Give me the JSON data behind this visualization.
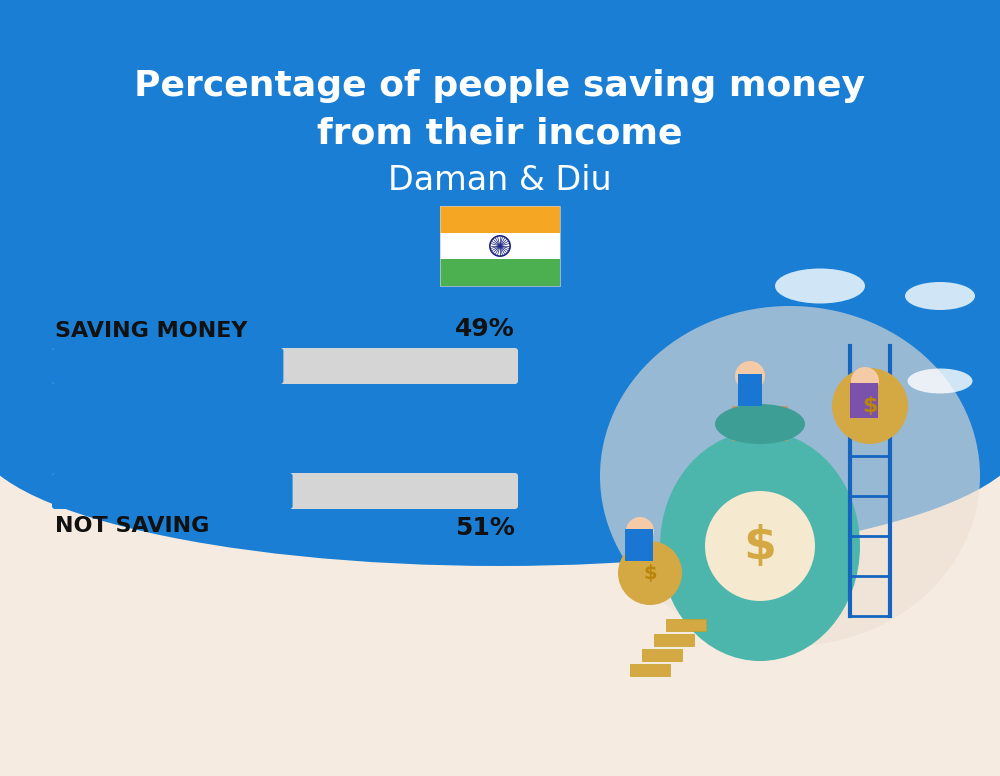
{
  "title_line1": "Percentage of people saving money",
  "title_line2": "from their income",
  "subtitle": "Daman & Diu",
  "bg_color": "#f5ebe0",
  "header_bg_color": "#1a7fd4",
  "title_color": "#ffffff",
  "subtitle_color": "#ffffff",
  "bar_label_color": "#111111",
  "categories": [
    "SAVING MONEY",
    "NOT SAVING"
  ],
  "values": [
    49,
    51
  ],
  "value_labels": [
    "49%",
    "51%"
  ],
  "bar_color_filled": "#1a7fd4",
  "bar_color_empty": "#d5d5d5",
  "title_fontsize": 26,
  "subtitle_fontsize": 24,
  "label_fontsize": 16,
  "value_fontsize": 18,
  "flag_orange": "#f5a623",
  "flag_white": "#ffffff",
  "flag_green": "#4caf50",
  "flag_navy": "#1a237e",
  "illus_bg": "#f0e6d8",
  "illus_teal": "#4db6ac",
  "illus_gold": "#d4a843",
  "illus_blue_person": "#1976d2",
  "illus_purple": "#7b52ab",
  "illus_ladder": "#1565c0",
  "cloud_color": "#ffffff"
}
